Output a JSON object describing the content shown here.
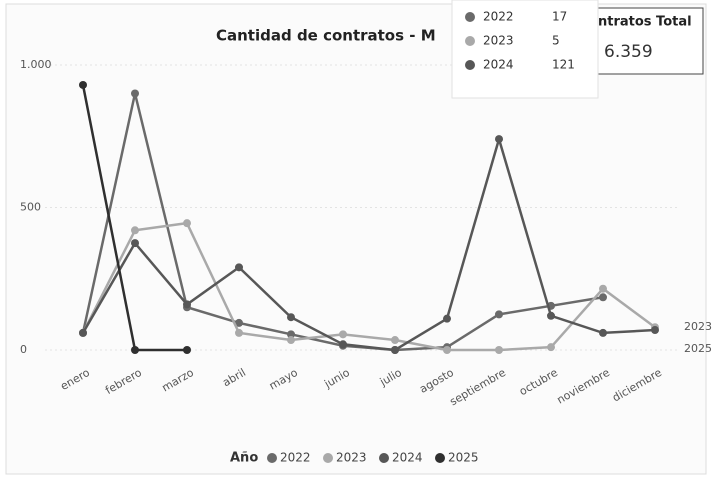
{
  "chart_data": {
    "type": "line",
    "title": "Cantidad de contratos - M",
    "categories": [
      "enero",
      "febrero",
      "marzo",
      "abril",
      "mayo",
      "junio",
      "julio",
      "agosto",
      "septiembre",
      "octubre",
      "noviembre",
      "diciembre"
    ],
    "series": [
      {
        "name": "2022",
        "color": "#6a6a6a",
        "values": [
          60,
          900,
          150,
          95,
          55,
          15,
          0,
          10,
          125,
          155,
          185,
          null
        ]
      },
      {
        "name": "2023",
        "color": "#a9a9a9",
        "values": [
          60,
          420,
          445,
          60,
          35,
          55,
          35,
          0,
          0,
          10,
          215,
          80
        ]
      },
      {
        "name": "2024",
        "color": "#575757",
        "values": [
          60,
          375,
          160,
          290,
          115,
          20,
          0,
          110,
          740,
          120,
          60,
          70
        ]
      },
      {
        "name": "2025",
        "color": "#2f2f2f",
        "values": [
          930,
          0,
          0,
          null,
          null,
          null,
          null,
          null,
          null,
          null,
          null,
          null
        ]
      }
    ],
    "ylim": [
      -50,
      1100
    ],
    "yticks": [
      0,
      500,
      {
        "value": 1000,
        "label": "1.000"
      }
    ],
    "end_labels": [
      "2023",
      "2025"
    ],
    "legend_title": "Año",
    "legend": "bottom",
    "card": {
      "label": "ntratos Total",
      "value": "6.359"
    },
    "tooltip": [
      {
        "name": "2022",
        "value": 17
      },
      {
        "name": "2023",
        "value": 5
      },
      {
        "name": "2024",
        "value": 121
      }
    ]
  }
}
